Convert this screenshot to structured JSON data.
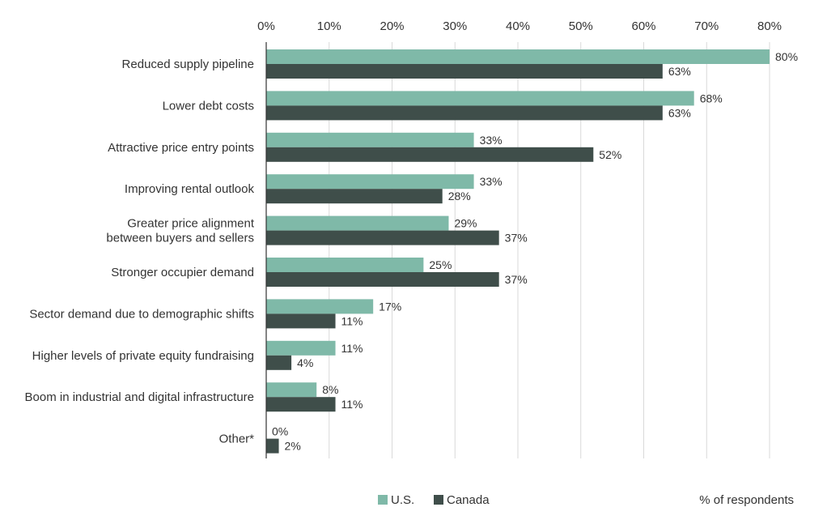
{
  "chart_data": {
    "type": "bar",
    "orientation": "horizontal",
    "title": "",
    "xlabel": "% of respondents",
    "ylabel": "",
    "xlim": [
      0,
      80
    ],
    "x_ticks": [
      "0%",
      "10%",
      "20%",
      "30%",
      "40%",
      "50%",
      "60%",
      "70%",
      "80%"
    ],
    "grid": true,
    "legend_position": "bottom",
    "categories": [
      [
        "Reduced supply pipeline"
      ],
      [
        "Lower debt costs"
      ],
      [
        "Attractive price entry points"
      ],
      [
        "Improving rental outlook"
      ],
      [
        "Greater price alignment",
        "between buyers and sellers"
      ],
      [
        "Stronger occupier demand"
      ],
      [
        "Sector demand due to demographic shifts"
      ],
      [
        "Higher levels of private equity fundraising"
      ],
      [
        "Boom in industrial and digital infrastructure"
      ],
      [
        "Other*"
      ]
    ],
    "series": [
      {
        "name": "U.S.",
        "color": "#7fb9a8",
        "values": [
          80,
          68,
          33,
          33,
          29,
          25,
          17,
          11,
          8,
          0
        ]
      },
      {
        "name": "Canada",
        "color": "#3f4e4a",
        "values": [
          63,
          63,
          52,
          28,
          37,
          37,
          11,
          4,
          11,
          2
        ]
      }
    ],
    "value_suffix": "%"
  }
}
